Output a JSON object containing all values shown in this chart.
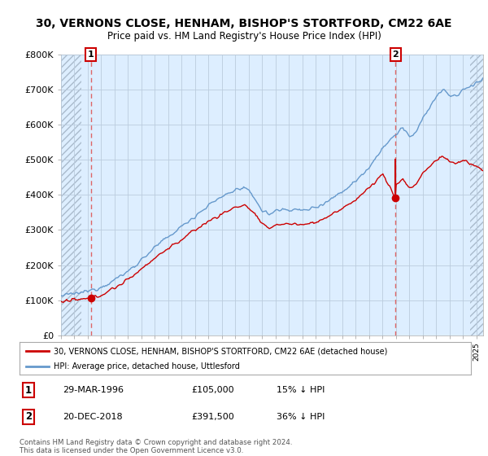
{
  "title": "30, VERNONS CLOSE, HENHAM, BISHOP'S STORTFORD, CM22 6AE",
  "subtitle": "Price paid vs. HM Land Registry's House Price Index (HPI)",
  "sale1_date": 1996.22,
  "sale1_price": 105000,
  "sale1_label": "1",
  "sale2_date": 2018.97,
  "sale2_price": 391500,
  "sale2_label": "2",
  "legend_line1": "30, VERNONS CLOSE, HENHAM, BISHOP'S STORTFORD, CM22 6AE (detached house)",
  "legend_line2": "HPI: Average price, detached house, Uttlesford",
  "footer": "Contains HM Land Registry data © Crown copyright and database right 2024.\nThis data is licensed under the Open Government Licence v3.0.",
  "ylim": [
    0,
    800000
  ],
  "xlim_left": 1994.0,
  "xlim_right": 2025.5,
  "hatch_end": 1995.5,
  "hatch_start_right": 2024.5,
  "red_color": "#cc0000",
  "blue_color": "#6699cc",
  "bg_color": "#ffffff",
  "plot_bg_color": "#ddeeff",
  "grid_color": "#bbccdd",
  "hatch_color": "#aabbcc",
  "vline_color": "#dd6666"
}
